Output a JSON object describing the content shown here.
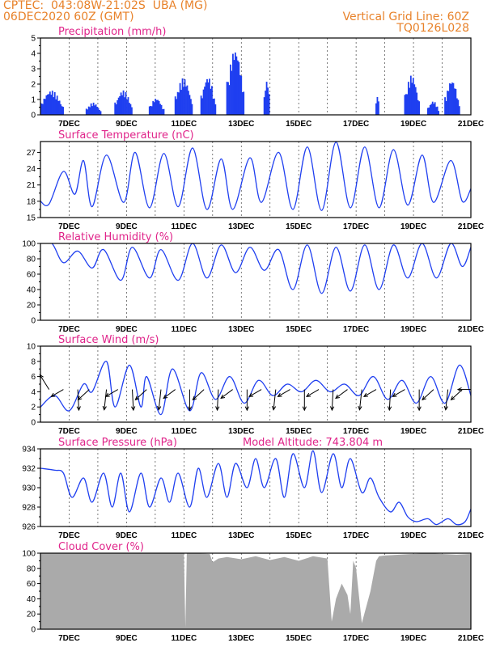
{
  "header": {
    "station": "CPTEC:  043:08W-21:02S  UBA (MG)",
    "run": "06DEC2020 60Z (GMT)",
    "grid_note": "Vertical Grid Line: 60Z",
    "model": "TQ0126L028"
  },
  "colors": {
    "header": "#e8822a",
    "title": "#e0248a",
    "series": "#1f3ff0",
    "cloud": "#aaaaaa",
    "grid": "#444444"
  },
  "chart_data": [
    {
      "id": "precip",
      "type": "bar",
      "title": "Precipitation (mm/h)",
      "ylim": [
        0,
        5
      ],
      "yticks": [
        0,
        1,
        2,
        3,
        4,
        5
      ],
      "xlim": [
        6.0,
        21.0
      ],
      "xtick_labels": [
        "7DEC",
        "9DEC",
        "11DEC",
        "13DEC",
        "15DEC",
        "17DEC",
        "19DEC",
        "21DEC"
      ],
      "bursts": [
        [
          6.0,
          6.8,
          1.6
        ],
        [
          7.6,
          8.1,
          0.8
        ],
        [
          8.6,
          9.2,
          1.6
        ],
        [
          9.8,
          10.3,
          1.1
        ],
        [
          10.7,
          11.3,
          2.4
        ],
        [
          11.6,
          12.1,
          2.5
        ],
        [
          12.5,
          13.1,
          4.3
        ],
        [
          13.8,
          14.0,
          2.3
        ],
        [
          17.7,
          17.8,
          1.5
        ],
        [
          18.7,
          19.2,
          2.6
        ],
        [
          19.5,
          19.9,
          0.9
        ],
        [
          20.1,
          20.6,
          2.3
        ]
      ]
    },
    {
      "id": "temp",
      "type": "line",
      "title": "Surface Temperature (nC)",
      "ylim": [
        15,
        29
      ],
      "yticks": [
        15,
        18,
        21,
        24,
        27
      ],
      "xlim": [
        6.0,
        21.0
      ],
      "xtick_labels": [
        "7DEC",
        "9DEC",
        "11DEC",
        "13DEC",
        "15DEC",
        "17DEC",
        "19DEC",
        "21DEC"
      ],
      "x": [
        6.0,
        6.3,
        6.8,
        7.2,
        7.5,
        7.8,
        8.3,
        8.9,
        9.3,
        9.8,
        10.3,
        10.8,
        11.3,
        11.8,
        12.3,
        12.7,
        13.3,
        13.7,
        14.3,
        14.8,
        15.3,
        15.8,
        16.3,
        16.8,
        17.3,
        17.8,
        18.3,
        18.8,
        19.3,
        19.7,
        20.3,
        20.7,
        21.0
      ],
      "y": [
        18.0,
        17.5,
        23.5,
        19.3,
        25.5,
        17.0,
        26.5,
        17.8,
        27.0,
        16.8,
        26.8,
        17.0,
        27.8,
        16.5,
        25.8,
        16.5,
        26.0,
        17.8,
        27.0,
        16.5,
        28.0,
        16.3,
        28.9,
        16.8,
        28.0,
        16.8,
        27.5,
        17.3,
        26.5,
        17.8,
        25.5,
        18.0,
        20.3
      ]
    },
    {
      "id": "rh",
      "type": "line",
      "title": "Relative Humidity (%)",
      "ylim": [
        0,
        100
      ],
      "yticks": [
        0,
        20,
        40,
        60,
        80,
        100
      ],
      "xlim": [
        6.0,
        21.0
      ],
      "xtick_labels": [
        "7DEC",
        "9DEC",
        "11DEC",
        "13DEC",
        "15DEC",
        "17DEC",
        "19DEC",
        "21DEC"
      ],
      "x": [
        6.0,
        6.4,
        6.8,
        7.3,
        7.8,
        8.2,
        8.8,
        9.2,
        9.8,
        10.2,
        10.8,
        11.3,
        11.8,
        12.3,
        12.8,
        13.3,
        13.8,
        14.3,
        14.8,
        15.3,
        15.8,
        16.3,
        16.8,
        17.3,
        17.8,
        18.3,
        18.8,
        19.3,
        19.8,
        20.3,
        20.7,
        21.0
      ],
      "y": [
        100.0,
        100.0,
        75.0,
        90.0,
        68.0,
        92.0,
        52.0,
        95.0,
        55.0,
        92.0,
        52.0,
        100.0,
        55.0,
        98.0,
        62.0,
        95.0,
        65.0,
        92.0,
        40.0,
        98.0,
        35.0,
        95.0,
        38.0,
        98.0,
        40.0,
        98.0,
        55.0,
        100.0,
        55.0,
        100.0,
        70.0,
        95.0
      ]
    },
    {
      "id": "wind",
      "type": "line",
      "title": "Surface Wind (m/s)",
      "ylim": [
        0,
        10
      ],
      "yticks": [
        0,
        2,
        4,
        6,
        8,
        10
      ],
      "xlim": [
        6.0,
        21.0
      ],
      "xtick_labels": [
        "7DEC",
        "9DEC",
        "11DEC",
        "13DEC",
        "15DEC",
        "17DEC",
        "19DEC",
        "21DEC"
      ],
      "x": [
        6.0,
        6.5,
        7.0,
        7.5,
        7.8,
        8.3,
        8.6,
        9.1,
        9.5,
        9.7,
        10.2,
        10.6,
        11.2,
        11.6,
        12.1,
        12.6,
        13.1,
        13.6,
        14.1,
        14.6,
        15.1,
        15.6,
        16.1,
        16.6,
        17.1,
        17.6,
        18.1,
        18.6,
        19.1,
        19.6,
        20.1,
        20.6,
        21.0
      ],
      "y": [
        2.0,
        3.5,
        1.5,
        5.0,
        4.0,
        8.0,
        2.0,
        7.5,
        2.0,
        6.0,
        1.0,
        7.0,
        1.5,
        6.5,
        3.0,
        6.0,
        2.5,
        5.5,
        3.5,
        5.0,
        4.0,
        5.5,
        4.0,
        5.0,
        3.5,
        6.0,
        3.0,
        5.5,
        2.5,
        6.0,
        2.5,
        7.5,
        3.5
      ],
      "arrow_x": [
        6.3,
        6.8,
        7.3,
        7.7,
        8.3,
        8.7,
        9.2,
        9.7,
        10.2,
        10.7,
        11.2,
        11.7,
        12.2,
        12.7,
        13.2,
        13.7,
        14.2,
        14.7,
        15.2,
        15.7,
        16.2,
        16.7,
        17.2,
        17.7,
        18.2,
        18.7,
        19.2,
        19.7,
        20.2,
        20.7,
        21.0
      ],
      "arrow_dir_deg": [
        225,
        160,
        85,
        150,
        100,
        160,
        85,
        150,
        100,
        155,
        90,
        150,
        95,
        155,
        90,
        160,
        100,
        160,
        90,
        160,
        95,
        155,
        100,
        160,
        95,
        160,
        90,
        150,
        100,
        150,
        180
      ]
    },
    {
      "id": "pressure",
      "type": "line",
      "title": "Surface Pressure (hPa)",
      "annotation": "Model Altitude: 743.804 m",
      "ylim": [
        926,
        934
      ],
      "yticks": [
        926,
        928,
        930,
        932,
        934
      ],
      "xlim": [
        6.0,
        21.0
      ],
      "xtick_labels": [
        "7DEC",
        "9DEC",
        "11DEC",
        "13DEC",
        "15DEC",
        "17DEC",
        "19DEC",
        "21DEC"
      ],
      "x": [
        6.0,
        6.5,
        6.8,
        7.1,
        7.5,
        7.8,
        8.2,
        8.5,
        8.8,
        9.1,
        9.5,
        9.8,
        10.2,
        10.5,
        10.8,
        11.2,
        11.5,
        11.8,
        12.2,
        12.5,
        12.8,
        13.2,
        13.5,
        13.8,
        14.2,
        14.5,
        14.8,
        15.2,
        15.5,
        15.8,
        16.2,
        16.5,
        16.8,
        17.2,
        17.5,
        17.8,
        18.2,
        18.5,
        18.8,
        19.1,
        19.5,
        19.8,
        20.2,
        20.5,
        20.8,
        21.0
      ],
      "y": [
        932.0,
        931.8,
        931.5,
        929.0,
        931.0,
        928.5,
        931.5,
        928.0,
        931.5,
        927.5,
        931.5,
        928.0,
        931.0,
        928.5,
        931.5,
        928.0,
        932.0,
        929.0,
        932.5,
        929.0,
        932.5,
        930.0,
        933.0,
        930.0,
        933.0,
        929.0,
        933.5,
        930.0,
        933.8,
        929.5,
        933.5,
        930.0,
        933.0,
        929.5,
        931.0,
        929.0,
        927.5,
        928.5,
        927.0,
        926.5,
        926.8,
        926.2,
        926.8,
        926.2,
        926.5,
        927.8
      ]
    },
    {
      "id": "cloud",
      "type": "area",
      "title": "Cloud Cover (%)",
      "ylim": [
        0,
        100
      ],
      "yticks": [
        0,
        20,
        40,
        60,
        80,
        100
      ],
      "xlim": [
        6.0,
        21.0
      ],
      "xtick_labels": [
        "7DEC",
        "9DEC",
        "11DEC",
        "13DEC",
        "15DEC",
        "17DEC",
        "19DEC",
        "21DEC"
      ],
      "x": [
        6.0,
        10.9,
        11.0,
        11.05,
        11.1,
        11.9,
        12.0,
        12.2,
        12.5,
        13.0,
        13.5,
        14.0,
        14.5,
        15.0,
        15.5,
        16.0,
        16.15,
        16.3,
        16.5,
        16.7,
        16.8,
        16.9,
        17.0,
        17.2,
        17.5,
        17.7,
        17.8,
        18.0,
        18.5,
        19.0,
        19.5,
        20.0,
        20.5,
        21.0
      ],
      "y": [
        100,
        100,
        100,
        2,
        100,
        99,
        88,
        93,
        95,
        92,
        96,
        91,
        95,
        90,
        96,
        93,
        10,
        40,
        60,
        45,
        20,
        90,
        80,
        8,
        50,
        90,
        96,
        97,
        98,
        99,
        100,
        99,
        98,
        99
      ]
    }
  ]
}
